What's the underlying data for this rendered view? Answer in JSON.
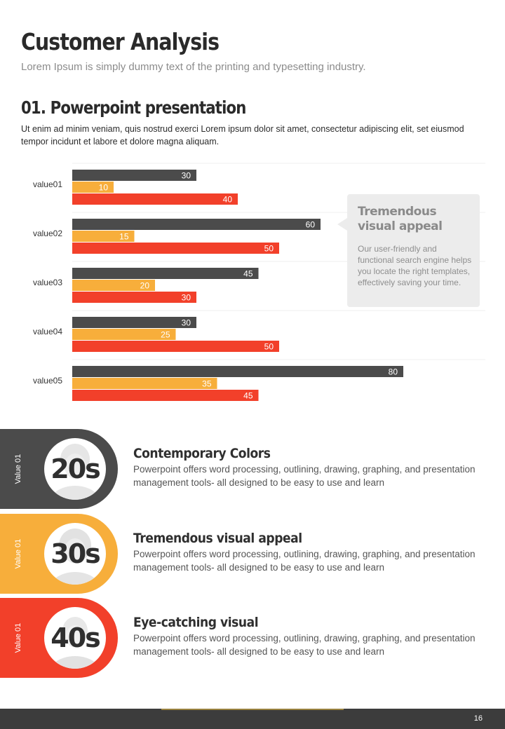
{
  "header": {
    "title": "Customer Analysis",
    "subtitle": "Lorem Ipsum is simply dummy text of the printing and typesetting industry."
  },
  "section": {
    "title": "01. Powerpoint presentation",
    "text": "Ut enim ad minim veniam, quis nostrud exerci  Lorem ipsum dolor sit amet, consectetur adipiscing elit, set eiusmod tempor incidunt et labore et dolore magna aliquam."
  },
  "chart_data": {
    "type": "bar",
    "orientation": "horizontal",
    "categories": [
      "value01",
      "value02",
      "value03",
      "value04",
      "value05"
    ],
    "series": [
      {
        "values": [
          30,
          60,
          45,
          30,
          80
        ],
        "color": "#4b4b4b"
      },
      {
        "values": [
          10,
          15,
          20,
          25,
          35
        ],
        "color": "#f7ae3b"
      },
      {
        "values": [
          40,
          50,
          30,
          50,
          45
        ],
        "color": "#f2402a"
      }
    ],
    "xlim": [
      0,
      100
    ],
    "grid": true,
    "data_labels": true
  },
  "callout": {
    "title": "Tremendous visual appeal",
    "text": "Our user-friendly and functional search engine helps you locate the right templates, effectively saving your time."
  },
  "segments": [
    {
      "vertical_label": "Value 01",
      "age": "20s",
      "color": "#4b4b4b",
      "title": "Contemporary Colors",
      "text": "Powerpoint offers word processing, outlining, drawing, graphing, and presentation management tools- all designed to be easy to use and learn"
    },
    {
      "vertical_label": "Value 01",
      "age": "30s",
      "color": "#f7ae3b",
      "title": "Tremendous visual appeal",
      "text": "Powerpoint offers word processing, outlining, drawing, graphing, and presentation management tools- all designed to be easy to use and learn"
    },
    {
      "vertical_label": "Value 01",
      "age": "40s",
      "color": "#f2402a",
      "title": "Eye-catching visual",
      "text": "Powerpoint offers word processing, outlining, drawing, graphing, and presentation management tools- all designed to be easy to use and learn"
    }
  ],
  "footer": {
    "page_number": "16"
  }
}
